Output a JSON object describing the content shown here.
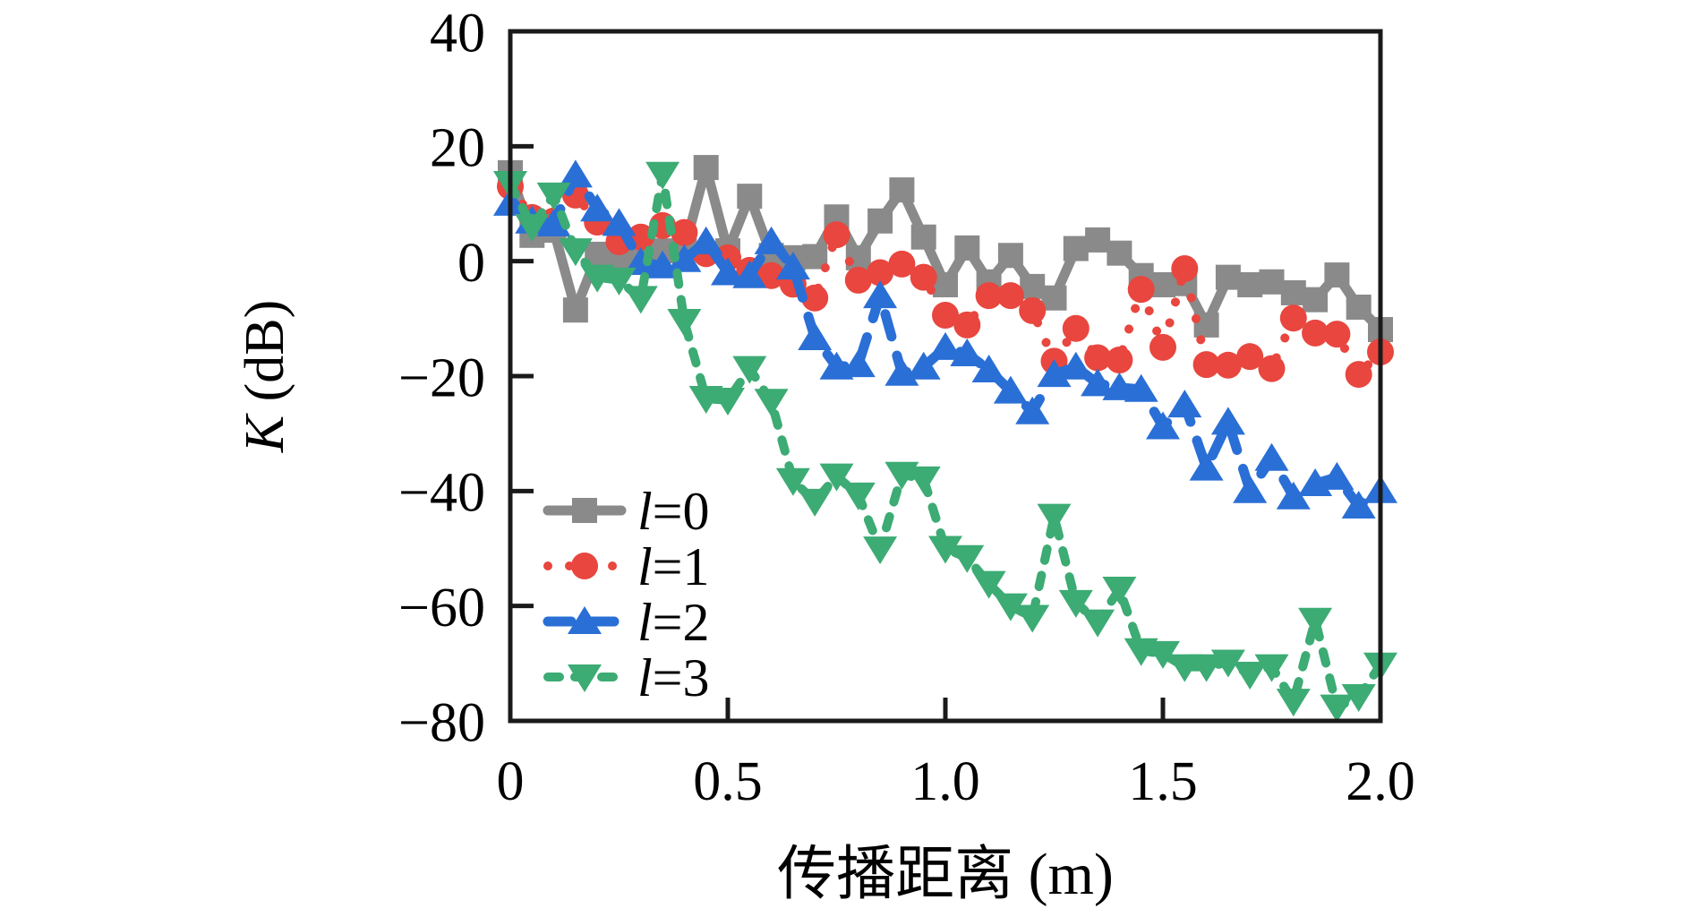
{
  "figure": {
    "background": "#ffffff",
    "frame_color": "#1a1a1a"
  },
  "chart_data": {
    "type": "line",
    "title": "",
    "xlabel": "传播距离 (m)",
    "ylabel": "K (dB)",
    "ylabel_var": "K",
    "ylabel_unit": " (dB)",
    "xlim": [
      0,
      2.0
    ],
    "ylim": [
      -80,
      40
    ],
    "grid": false,
    "legend_position": "lower-left-inside",
    "x_ticks": [
      0,
      0.5,
      1.0,
      1.5,
      2.0
    ],
    "x_tick_labels": [
      "0",
      "0.5",
      "1.0",
      "1.5",
      "2.0"
    ],
    "y_ticks": [
      40,
      20,
      0,
      -20,
      -40,
      -60,
      -80
    ],
    "y_tick_labels": [
      "40",
      "20",
      "0",
      "−20",
      "−40",
      "−60",
      "−80"
    ],
    "x": [
      0,
      0.05,
      0.1,
      0.15,
      0.2,
      0.25,
      0.3,
      0.35,
      0.4,
      0.45,
      0.5,
      0.55,
      0.6,
      0.65,
      0.7,
      0.75,
      0.8,
      0.85,
      0.9,
      0.95,
      1,
      1.05,
      1.1,
      1.15,
      1.2,
      1.25,
      1.3,
      1.35,
      1.4,
      1.45,
      1.5,
      1.55,
      1.6,
      1.65,
      1.7,
      1.75,
      1.8,
      1.85,
      1.9,
      1.95,
      2
    ],
    "series": [
      {
        "name": "l=0",
        "label_var": "l",
        "label_eq": "=0",
        "color": "#8a8a8a",
        "marker": "square",
        "line": "solid",
        "values": [
          15.4,
          4.5,
          5.4,
          -8.5,
          1.2,
          0.4,
          2,
          1.8,
          2.1,
          16.3,
          1.8,
          11.3,
          1,
          0.6,
          0.8,
          7.7,
          0.6,
          7,
          12.4,
          4.2,
          -4.1,
          2.3,
          -3.6,
          1,
          -4.4,
          -6.4,
          2.2,
          3.7,
          1.4,
          -2.5,
          -4.1,
          -3.9,
          -11.1,
          -2.8,
          -4.1,
          -3.6,
          -5.5,
          -6.7,
          -2.4,
          -8,
          -11.9
        ]
      },
      {
        "name": "l=1",
        "label_var": "l",
        "label_eq": "=1",
        "color": "#e8463e",
        "marker": "circle",
        "line": "dotted",
        "values": [
          13,
          7.6,
          7,
          11.5,
          6.8,
          3.4,
          4.2,
          6.2,
          5,
          1.3,
          0.6,
          -1.6,
          -2.5,
          -4,
          -6.4,
          4.6,
          -3.3,
          -2,
          -0.5,
          -2.8,
          -9.4,
          -11.1,
          -6,
          -6,
          -8.6,
          -17.4,
          -11.7,
          -16.8,
          -17.2,
          -4.9,
          -15,
          -1.3,
          -18,
          -18.1,
          -16.6,
          -18.7,
          -9.9,
          -12.5,
          -12.7,
          -19.7,
          -15.8
        ]
      },
      {
        "name": "l=2",
        "label_var": "l",
        "label_eq": "=2",
        "color": "#2a6fd6",
        "marker": "triangle-up",
        "line": "dashed",
        "values": [
          10.1,
          7,
          6.5,
          15,
          9.1,
          6.6,
          -0.2,
          -0.8,
          0.3,
          3.4,
          -2,
          -2.5,
          3.4,
          -1,
          -13.3,
          -18.4,
          -18,
          -6,
          -19.5,
          -18.4,
          -15,
          -16.1,
          -18.9,
          -22.6,
          -26.2,
          -19.7,
          -18.4,
          -21.3,
          -22,
          -22.3,
          -28.8,
          -25,
          -36,
          -28,
          -39.9,
          -34.3,
          -41,
          -38.7,
          -37.6,
          -42.6,
          -39.9
        ]
      },
      {
        "name": "l=3",
        "label_var": "l",
        "label_eq": "=3",
        "color": "#3cab74",
        "marker": "triangle-down",
        "line": "dash-dot",
        "values": [
          13.5,
          6,
          11.5,
          1.8,
          -2.8,
          -3.3,
          -6.5,
          15.1,
          -10.5,
          -23.9,
          -24.2,
          -18.7,
          -24.4,
          -38.2,
          -41.8,
          -37.4,
          -40.7,
          -50.1,
          -37.1,
          -37.9,
          -50,
          -51.6,
          -56.1,
          -60,
          -62,
          -44.4,
          -59.4,
          -62.8,
          -57.1,
          -67.8,
          -68.3,
          -70.6,
          -70.6,
          -69.8,
          -71.9,
          -70.6,
          -76.6,
          -62.5,
          -77.6,
          -75.8,
          -70.3
        ]
      }
    ]
  }
}
